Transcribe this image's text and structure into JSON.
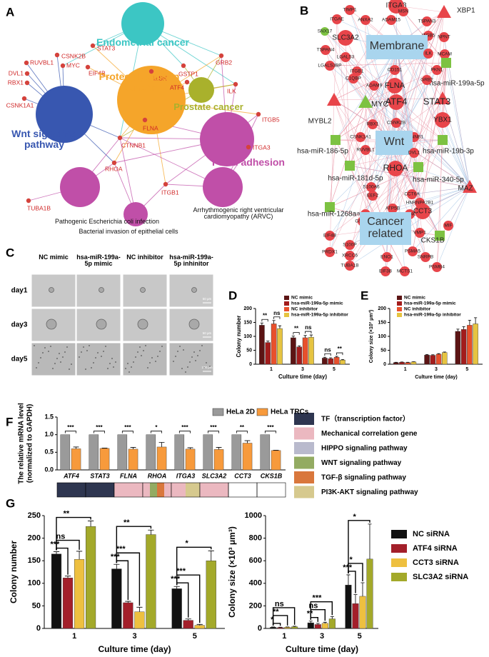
{
  "panel_labels": [
    "A",
    "B",
    "C",
    "D",
    "E",
    "F",
    "G"
  ],
  "network_a": {
    "hubs": [
      "Endometrial cancer",
      "Proteoglycans in cancer",
      "Prostate cancer",
      "Wnt signaling pathway",
      "Focal adhesion",
      "Pathogenic Escherichia coli infection",
      "Bacterial invasion of epithelial cells",
      "Arrhythmogenic right ventricular cardiomyopathy (ARVC)"
    ],
    "genes": [
      "CSNK2B",
      "RUVBL1",
      "DVL1",
      "RBX1",
      "CSNK1A1",
      "MYC",
      "STAT3",
      "EIF4B",
      "MSN",
      "GSTP1",
      "ATF4",
      "GRB2",
      "ILK",
      "ITGB5",
      "ITGA3",
      "FLNA",
      "CTNNB1",
      "RHOA",
      "ITGB1",
      "TUBA1B"
    ]
  },
  "network_b": {
    "nodes": [
      "ITGA3",
      "TIMP1",
      "MSN",
      "ITGAE",
      "ANXA2",
      "ADAM15",
      "TSPAN3",
      "XBP1",
      "SNX17",
      "SLC3A2",
      "ITGB5",
      "NPNT",
      "Membrane",
      "TSPAN4",
      "LGALS3",
      "ILK",
      "MCAM",
      "LGALS3BP",
      "CD151",
      "PKN1",
      "hsa-miR-199a-5p",
      "ITGB1",
      "GRB2",
      "C1QBP",
      "ADAM9",
      "FLNA",
      "MYBL2",
      "MYC",
      "ATF4",
      "STAT3",
      "RBX1",
      "CSNK2B",
      "YBX1",
      "CSNK1A1",
      "CTNNB1",
      "Wnt",
      "hsa-miR-186-5p",
      "hsa-miR-19b-3p",
      "RUVBL1",
      "DVL1",
      "RHOA",
      "hsa-miR-181d-5p",
      "hsa-miR-340-5p",
      "S100A6",
      "CCT6A",
      "EEF2",
      "HNRNPA2B1",
      "ATP5B",
      "MAZ",
      "IMPDH2",
      "NONO",
      "CCT3",
      "hsa-miR-1268a",
      "GSTP1",
      "Cancer related",
      "EIF4B",
      "S100P",
      "VMP1",
      "CKS1B",
      "MIF",
      "PRDX1",
      "XRCC6",
      "PSMA5",
      "ENO1",
      "SNRPB",
      "TUBA1B",
      "EIF3B",
      "MCTS1",
      "PSMB4"
    ]
  },
  "microscopy": {
    "columns": [
      "NC mimic",
      "hsa-miR-199a-5p mimic",
      "NC inhibitor",
      "hsa-miR-199a-5p inhinitor"
    ],
    "rows": [
      "day1",
      "day3",
      "day5"
    ],
    "scale_bars": [
      "50 μm",
      "50 μm",
      "100 μm"
    ]
  },
  "pathway_legend": [
    {
      "label": "TF（transcription factor）",
      "color": "#2e3650"
    },
    {
      "label": "Mechanical correlation gene",
      "color": "#ebb8c0"
    },
    {
      "label": "HIPPO signaling pathway",
      "color": "#b9bacd"
    },
    {
      "label": "WNT signaling pathway",
      "color": "#93ab62"
    },
    {
      "label": "TGF-β signaling pathway",
      "color": "#d9773c"
    },
    {
      "label": "PI3K-AKT signaling pathway",
      "color": "#d6c98e"
    }
  ],
  "chart_data": [
    {
      "type": "bar",
      "categories": [
        "1",
        "3",
        "5"
      ],
      "xlabel": "Culture time (day)",
      "ylabel": "Colony number",
      "ylim": [
        0,
        200
      ],
      "yticks": [
        0,
        50,
        100,
        150,
        200
      ],
      "series": [
        {
          "name": "NC mimic",
          "color": "#5c1414",
          "values": [
            140,
            95,
            22
          ],
          "errors": [
            8,
            6,
            3
          ]
        },
        {
          "name": "hsa-miR-199a-5p mimic",
          "color": "#a31c1c",
          "values": [
            78,
            62,
            20
          ],
          "errors": [
            5,
            4,
            3
          ]
        },
        {
          "name": "NC inhibitor",
          "color": "#e8502c",
          "values": [
            145,
            95,
            25
          ],
          "errors": [
            12,
            8,
            3
          ]
        },
        {
          "name": "hsa-miR-199a-5p inhibitor",
          "color": "#e6c441",
          "values": [
            128,
            97,
            15
          ],
          "errors": [
            10,
            8,
            2
          ]
        }
      ],
      "significance": [
        [
          "**",
          "ns"
        ],
        [
          "**",
          "ns"
        ],
        [
          "ns",
          "**"
        ]
      ]
    },
    {
      "type": "bar",
      "categories": [
        "1",
        "3",
        "5"
      ],
      "xlabel": "Culture time (day)",
      "ylabel": "Colony size (×10³ μm³)",
      "ylim": [
        0,
        200
      ],
      "yticks": [
        0,
        50,
        100,
        150,
        200
      ],
      "series": [
        {
          "name": "NC mimic",
          "color": "#5c1414",
          "values": [
            6,
            33,
            118
          ],
          "errors": [
            1,
            2,
            8
          ]
        },
        {
          "name": "hsa-miR-199a-5p mimic",
          "color": "#a31c1c",
          "values": [
            7,
            32,
            125
          ],
          "errors": [
            1,
            2,
            10
          ]
        },
        {
          "name": "NC inhibitor",
          "color": "#e8502c",
          "values": [
            6,
            36,
            140
          ],
          "errors": [
            1,
            2,
            18
          ]
        },
        {
          "name": "hsa-miR-199a-5p inhibitor",
          "color": "#e6c441",
          "values": [
            8,
            42,
            145
          ],
          "errors": [
            1,
            2,
            22
          ]
        }
      ]
    },
    {
      "type": "bar",
      "categories": [
        "ATF4",
        "STAT3",
        "FLNA",
        "RHOA",
        "ITGA3",
        "SLC3A2",
        "CCT3",
        "CKS1B"
      ],
      "ylabel": [
        "The relative mRNA level",
        "(normalized to GAPDH)"
      ],
      "ylim": [
        0,
        1.5
      ],
      "yticks": [
        {
          "value": 0,
          "label": "0.0"
        },
        0.5,
        {
          "value": 1,
          "label": "1.0"
        },
        1.5
      ],
      "series": [
        {
          "name": "HeLa 2D",
          "color": "#9a9a9a",
          "values": [
            1,
            1,
            1,
            1,
            1,
            1,
            1,
            1
          ]
        },
        {
          "name": "HeLa TRCs",
          "color": "#f79a3c",
          "values": [
            0.6,
            0.61,
            0.59,
            0.65,
            0.59,
            0.58,
            0.76,
            0.55
          ],
          "errors": [
            0.05,
            0.01,
            0.05,
            0.13,
            0.04,
            0.06,
            0.07,
            0.01
          ]
        }
      ],
      "significance": [
        [
          "***"
        ],
        [
          "***"
        ],
        [
          "***"
        ],
        [
          "*"
        ],
        [
          "***"
        ],
        [
          "***"
        ],
        [
          "**"
        ],
        [
          "***"
        ]
      ]
    },
    {
      "type": "bar",
      "categories": [
        "1",
        "3",
        "5"
      ],
      "xlabel": "Culture time (day)",
      "ylabel": "Colony number",
      "ylim": [
        0,
        250
      ],
      "yticks": [
        0,
        50,
        100,
        150,
        200,
        250
      ],
      "series": [
        {
          "color": "#111111",
          "values": [
            165,
            132,
            88
          ],
          "errors": [
            5,
            10,
            5
          ]
        },
        {
          "color": "#a31f2a",
          "values": [
            112,
            57,
            18
          ],
          "errors": [
            4,
            3,
            3
          ]
        },
        {
          "color": "#eec040",
          "values": [
            153,
            37,
            7
          ],
          "errors": [
            18,
            10,
            2
          ]
        },
        {
          "color": "#a3a92a",
          "values": [
            226,
            208,
            150
          ],
          "errors": [
            12,
            10,
            22
          ]
        }
      ],
      "significance": [
        [
          "***",
          "ns",
          "**"
        ],
        [
          "***",
          "***",
          "**"
        ],
        [
          "***",
          "***",
          "*"
        ]
      ]
    },
    {
      "type": "bar",
      "categories": [
        "1",
        "3",
        "5"
      ],
      "xlabel": "Culture time (day)",
      "ylabel": "Colony size (×10³ μm³)",
      "ylim": [
        0,
        1000
      ],
      "yticks": [
        0,
        200,
        400,
        600,
        800,
        1000
      ],
      "series": [
        {
          "name": "NC siRNA",
          "color": "#111111",
          "values": [
            10,
            50,
            385
          ],
          "errors": [
            3,
            15,
            90
          ]
        },
        {
          "name": "ATF4 siRNA",
          "color": "#a31f2a",
          "values": [
            8,
            35,
            220
          ],
          "errors": [
            3,
            10,
            80
          ]
        },
        {
          "name": "CCT3 siRNA",
          "color": "#eec040",
          "values": [
            10,
            45,
            285
          ],
          "errors": [
            3,
            10,
            120
          ]
        },
        {
          "name": "SLC3A2 siRNA",
          "color": "#a3a92a",
          "values": [
            15,
            85,
            615
          ],
          "errors": [
            5,
            20,
            310
          ]
        }
      ],
      "significance": [
        [
          "*",
          "**",
          "ns"
        ],
        [
          "**",
          "ns",
          "***"
        ],
        [
          "***",
          "*",
          "*"
        ]
      ]
    }
  ]
}
